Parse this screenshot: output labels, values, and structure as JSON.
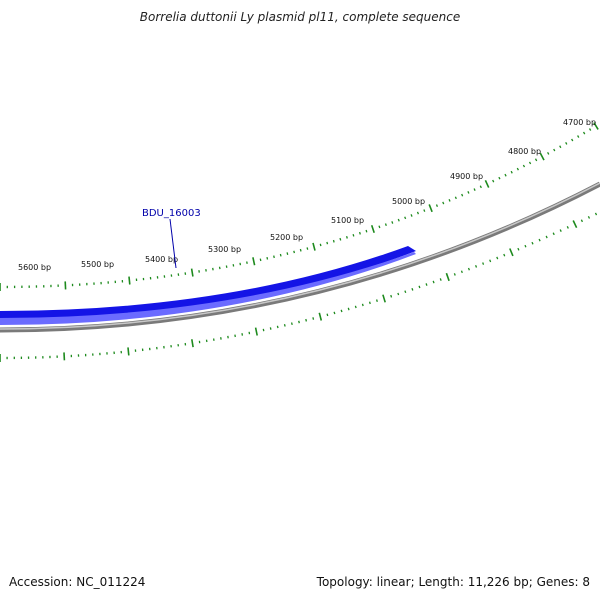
{
  "title": "Borrelia duttonii Ly plasmid pl11, complete sequence",
  "accession": "Accession: NC_011224",
  "summary": "Topology: linear; Length: 11,226 bp; Genes: 8",
  "colors": {
    "backbone": "#7d7d7d",
    "gene": "#1414e6",
    "gene_light": "#6b6bff",
    "ticks": "#1d8a1d",
    "gene_label": "#0000aa"
  },
  "ruler": {
    "labels": [
      "4700 bp",
      "4800 bp",
      "4900 bp",
      "5000 bp",
      "5100 bp",
      "5200 bp",
      "5300 bp",
      "5400 bp",
      "5500 bp",
      "5600 bp"
    ]
  },
  "gene": {
    "label": "BDU_16003"
  }
}
